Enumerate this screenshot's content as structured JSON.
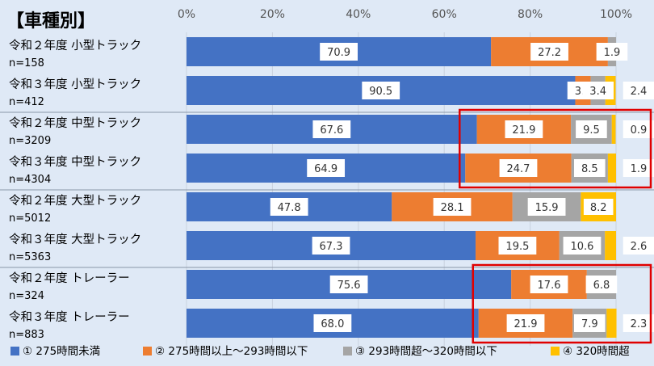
{
  "title": "【車種別】",
  "colors": {
    "s1": "#4472c4",
    "s2": "#ed7d31",
    "s3": "#a5a5a5",
    "s4": "#ffc000",
    "highlight": "#e00000",
    "background": "#dfe9f6"
  },
  "chart_data": {
    "type": "bar",
    "orientation": "horizontal",
    "stacked": true,
    "xlim": [
      0,
      100
    ],
    "x_ticks": [
      "0%",
      "20%",
      "40%",
      "60%",
      "80%",
      "100%"
    ],
    "categories": [
      {
        "label": "令和２年度 小型トラック",
        "n": "n=158"
      },
      {
        "label": "令和３年度 小型トラック",
        "n": "n=412"
      },
      {
        "label": "令和２年度 中型トラック",
        "n": "n=3209"
      },
      {
        "label": "令和３年度 中型トラック",
        "n": "n=4304"
      },
      {
        "label": "令和２年度 大型トラック",
        "n": "n=5012"
      },
      {
        "label": "令和３年度 大型トラック",
        "n": "n=5363"
      },
      {
        "label": "令和２年度 トレーラー",
        "n": "n=324"
      },
      {
        "label": "令和３年度 トレーラー",
        "n": "n=883"
      }
    ],
    "series": [
      {
        "name": "① 275時間未満",
        "values": [
          70.9,
          90.5,
          67.6,
          64.9,
          47.8,
          67.3,
          75.6,
          68.0
        ],
        "labels": [
          "70.9",
          "90.5",
          "67.6",
          "64.9",
          "47.8",
          "67.3",
          "75.6",
          "68.0"
        ]
      },
      {
        "name": "② 275時間以上～293時間以下",
        "values": [
          27.2,
          3.6,
          21.9,
          24.7,
          28.1,
          19.5,
          17.6,
          21.9
        ],
        "labels": [
          "27.2",
          "3.6",
          "21.9",
          "24.7",
          "28.1",
          "19.5",
          "17.6",
          "21.9"
        ]
      },
      {
        "name": "③ 293時間超～320時間以下",
        "values": [
          1.9,
          3.4,
          9.5,
          8.5,
          15.9,
          10.6,
          6.8,
          7.9
        ],
        "labels": [
          "1.9",
          "3.4",
          "9.5",
          "8.5",
          "15.9",
          "10.6",
          "6.8",
          "7.9"
        ]
      },
      {
        "name": "④ 320時間超",
        "values": [
          0.0,
          2.4,
          0.9,
          1.9,
          8.2,
          2.6,
          0.0,
          2.3
        ],
        "labels": [
          "",
          "2.4",
          "0.9",
          "1.9",
          "8.2",
          "2.6",
          "",
          "2.3"
        ]
      }
    ],
    "highlight_groups": [
      "中型トラック",
      "トレーラー"
    ],
    "grid": true,
    "legend_position": "bottom"
  }
}
